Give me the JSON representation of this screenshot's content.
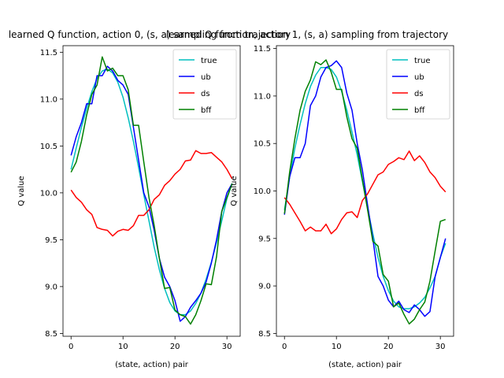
{
  "chart_data": [
    {
      "type": "line",
      "title": "learned Q function, action 0, (s, a) sampling from trajectory",
      "xlabel": "(state, action) pair",
      "ylabel": "Q value",
      "xlim": [
        -1.55,
        32.55
      ],
      "ylim": [
        8.47,
        11.57
      ],
      "xticks": [
        0,
        10,
        20,
        30
      ],
      "yticks": [
        8.5,
        9.0,
        9.5,
        10.0,
        10.5,
        11.0,
        11.5
      ],
      "ytick_labels": [
        "8.5",
        "9.0",
        "9.5",
        "10.0",
        "10.5",
        "11.0",
        "11.5"
      ],
      "legend_position": "top-right",
      "x": [
        0,
        1,
        2,
        3,
        4,
        5,
        6,
        7,
        8,
        9,
        10,
        11,
        12,
        13,
        14,
        15,
        16,
        17,
        18,
        19,
        20,
        21,
        22,
        23,
        24,
        25,
        26,
        27,
        28,
        29,
        30,
        31
      ],
      "series": [
        {
          "name": "true",
          "color": "#00bfbf",
          "values": [
            10.25,
            10.48,
            10.7,
            10.9,
            11.08,
            11.22,
            11.3,
            11.32,
            11.28,
            11.18,
            11.02,
            10.8,
            10.55,
            10.27,
            9.98,
            9.7,
            9.42,
            9.18,
            8.98,
            8.83,
            8.74,
            8.7,
            8.7,
            8.74,
            8.82,
            8.93,
            9.08,
            9.26,
            9.47,
            9.7,
            9.94,
            10.1
          ]
        },
        {
          "name": "ub",
          "color": "#0000ff",
          "values": [
            10.4,
            10.6,
            10.75,
            10.95,
            10.95,
            11.25,
            11.25,
            11.35,
            11.3,
            11.2,
            11.15,
            11.05,
            10.7,
            10.35,
            10.0,
            9.85,
            9.6,
            9.3,
            9.1,
            9.0,
            8.85,
            8.63,
            8.68,
            8.78,
            8.85,
            8.93,
            9.05,
            9.25,
            9.5,
            9.8,
            10.0,
            10.1
          ]
        },
        {
          "name": "ds",
          "color": "#ff0000",
          "values": [
            10.03,
            9.95,
            9.9,
            9.82,
            9.77,
            9.63,
            9.61,
            9.6,
            9.54,
            9.59,
            9.61,
            9.6,
            9.65,
            9.76,
            9.76,
            9.82,
            9.93,
            9.98,
            10.08,
            10.13,
            10.2,
            10.25,
            10.34,
            10.35,
            10.45,
            10.42,
            10.42,
            10.43,
            10.38,
            10.33,
            10.25,
            10.15
          ]
        },
        {
          "name": "bff",
          "color": "#008000",
          "values": [
            10.22,
            10.33,
            10.55,
            10.83,
            11.05,
            11.15,
            11.45,
            11.3,
            11.33,
            11.25,
            11.25,
            11.1,
            10.72,
            10.72,
            10.33,
            9.95,
            9.65,
            9.3,
            8.98,
            8.99,
            8.75,
            8.7,
            8.68,
            8.6,
            8.7,
            8.85,
            9.03,
            9.02,
            9.32,
            9.8,
            9.95,
            10.1
          ]
        }
      ]
    },
    {
      "type": "line",
      "title": "learned Q function, action 1, (s, a) sampling from trajectory",
      "xlabel": "(state, action) pair",
      "ylabel": "Q value",
      "xlim": [
        -1.55,
        32.55
      ],
      "ylim": [
        8.47,
        11.53
      ],
      "xticks": [
        0,
        10,
        20,
        30
      ],
      "yticks": [
        8.5,
        9.0,
        9.5,
        10.0,
        10.5,
        11.0,
        11.5
      ],
      "ytick_labels": [
        "8.5",
        "9.0",
        "9.5",
        "10.0",
        "10.5",
        "11.0",
        "11.5"
      ],
      "legend_position": "top-right",
      "x": [
        0,
        1,
        2,
        3,
        4,
        5,
        6,
        7,
        8,
        9,
        10,
        11,
        12,
        13,
        14,
        15,
        16,
        17,
        18,
        19,
        20,
        21,
        22,
        23,
        24,
        25,
        26,
        27,
        28,
        29,
        30,
        31
      ],
      "series": [
        {
          "name": "true",
          "color": "#00bfbf",
          "values": [
            9.8,
            10.15,
            10.45,
            10.7,
            10.92,
            11.1,
            11.22,
            11.3,
            11.3,
            11.28,
            11.2,
            11.05,
            10.85,
            10.62,
            10.38,
            10.1,
            9.82,
            9.55,
            9.3,
            9.1,
            8.95,
            8.84,
            8.78,
            8.76,
            8.76,
            8.78,
            8.82,
            8.88,
            8.98,
            9.1,
            9.3,
            9.45
          ]
        },
        {
          "name": "ub",
          "color": "#0000ff",
          "values": [
            9.75,
            10.15,
            10.35,
            10.35,
            10.5,
            10.9,
            11.0,
            11.2,
            11.3,
            11.32,
            11.37,
            11.3,
            11.03,
            10.85,
            10.5,
            10.22,
            9.85,
            9.5,
            9.1,
            9.0,
            8.85,
            8.78,
            8.84,
            8.75,
            8.72,
            8.8,
            8.75,
            8.68,
            8.73,
            9.1,
            9.3,
            9.5
          ]
        },
        {
          "name": "ds",
          "color": "#ff0000",
          "values": [
            9.93,
            9.86,
            9.77,
            9.68,
            9.58,
            9.62,
            9.58,
            9.58,
            9.65,
            9.55,
            9.6,
            9.7,
            9.77,
            9.78,
            9.72,
            9.9,
            9.97,
            10.07,
            10.17,
            10.2,
            10.28,
            10.31,
            10.35,
            10.33,
            10.42,
            10.32,
            10.37,
            10.3,
            10.2,
            10.14,
            10.05,
            9.99
          ]
        },
        {
          "name": "bff",
          "color": "#008000",
          "values": [
            9.76,
            10.2,
            10.55,
            10.85,
            11.05,
            11.17,
            11.36,
            11.33,
            11.38,
            11.25,
            11.07,
            11.07,
            10.78,
            10.55,
            10.45,
            10.12,
            9.8,
            9.47,
            9.42,
            9.12,
            9.05,
            8.78,
            8.82,
            8.7,
            8.6,
            8.65,
            8.75,
            8.83,
            9.05,
            9.37,
            9.68,
            9.7
          ]
        }
      ]
    }
  ]
}
